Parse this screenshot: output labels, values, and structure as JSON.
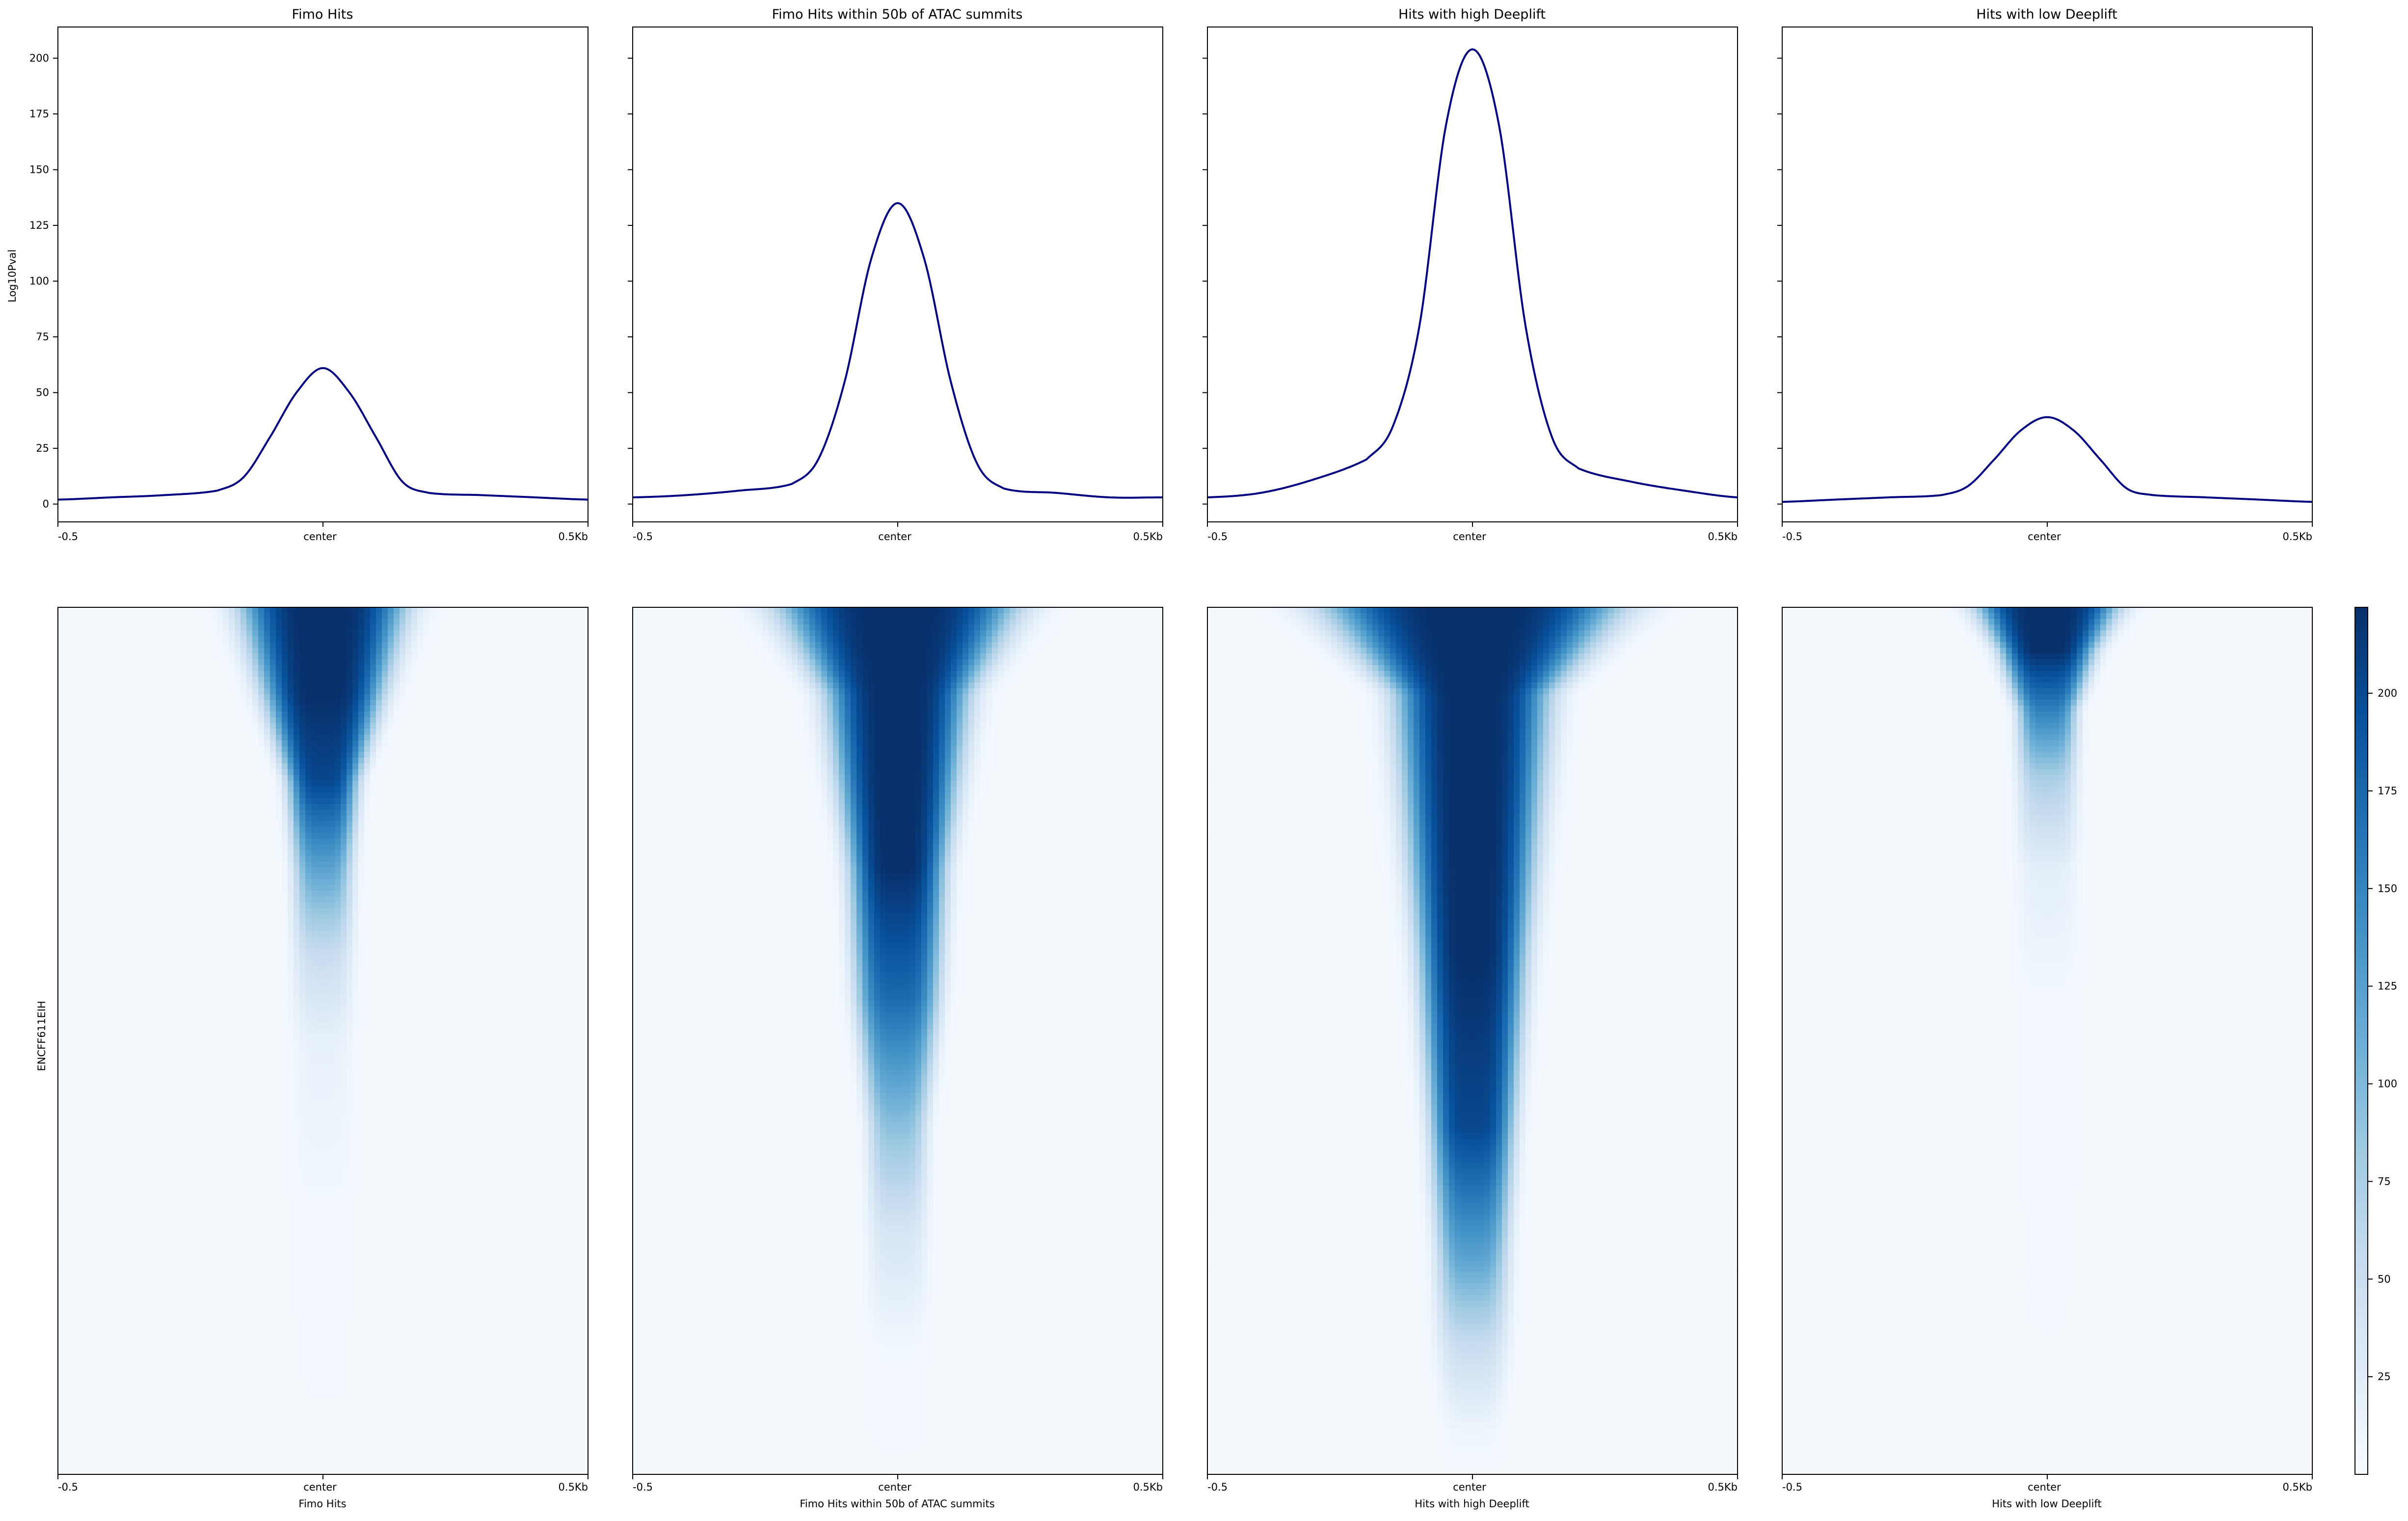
{
  "figure": {
    "profile_ylabel": "Log10Pval",
    "heatmap_ylabel": "ENCFF611EIH",
    "line_color": "#000080",
    "colormap": [
      "#f7fbff",
      "#deebf7",
      "#c6dbef",
      "#9ecae1",
      "#6baed6",
      "#4292c6",
      "#2171b5",
      "#08519c",
      "#08306b"
    ]
  },
  "chart_data": [
    {
      "type": "line",
      "title": "Fimo Hits",
      "x_ticks": [
        "-0.5",
        "center",
        "0.5Kb"
      ],
      "ylabel": "Log10Pval",
      "y_ticks": [
        "0",
        "25",
        "50",
        "75",
        "100",
        "125",
        "150",
        "175",
        "200"
      ],
      "ylim": [
        -8,
        214
      ],
      "x": [
        -0.5,
        -0.4,
        -0.3,
        -0.2,
        -0.15,
        -0.1,
        -0.05,
        0,
        0.05,
        0.1,
        0.15,
        0.2,
        0.3,
        0.4,
        0.5
      ],
      "values": [
        2,
        3,
        4,
        6,
        12,
        30,
        50,
        61,
        50,
        30,
        10,
        5,
        4,
        3,
        2
      ]
    },
    {
      "type": "line",
      "title": "Fimo Hits within 50b of ATAC summits",
      "x_ticks": [
        "-0.5",
        "center",
        "0.5Kb"
      ],
      "ylim": [
        -8,
        214
      ],
      "x": [
        -0.5,
        -0.4,
        -0.3,
        -0.2,
        -0.15,
        -0.1,
        -0.05,
        0,
        0.05,
        0.1,
        0.15,
        0.2,
        0.3,
        0.4,
        0.5
      ],
      "values": [
        3,
        4,
        6,
        9,
        20,
        55,
        110,
        135,
        110,
        55,
        18,
        7,
        5,
        3,
        3
      ]
    },
    {
      "type": "line",
      "title": "Hits with high Deeplift",
      "x_ticks": [
        "-0.5",
        "center",
        "0.5Kb"
      ],
      "ylim": [
        -8,
        214
      ],
      "x": [
        -0.5,
        -0.4,
        -0.3,
        -0.2,
        -0.15,
        -0.1,
        -0.05,
        0,
        0.05,
        0.1,
        0.15,
        0.2,
        0.3,
        0.4,
        0.5
      ],
      "values": [
        3,
        5,
        11,
        20,
        35,
        80,
        170,
        204,
        170,
        80,
        30,
        16,
        10,
        6,
        3
      ]
    },
    {
      "type": "line",
      "title": "Hits with low Deeplift",
      "x_ticks": [
        "-0.5",
        "center",
        "0.5Kb"
      ],
      "ylim": [
        -8,
        214
      ],
      "x": [
        -0.5,
        -0.4,
        -0.3,
        -0.2,
        -0.15,
        -0.1,
        -0.05,
        0,
        0.05,
        0.1,
        0.15,
        0.2,
        0.3,
        0.4,
        0.5
      ],
      "values": [
        1,
        2,
        3,
        4,
        8,
        20,
        33,
        39,
        33,
        20,
        7,
        4,
        3,
        2,
        1
      ]
    },
    {
      "type": "heatmap",
      "xlabel": "Fimo Hits",
      "x_ticks": [
        "-0.5",
        "center",
        "0.5Kb"
      ],
      "ylabel": "ENCFF611EIH",
      "bands": [
        {
          "row_fraction": 0.0,
          "center_value": 220,
          "half_width_kb": 0.14
        },
        {
          "row_fraction": 0.1,
          "center_value": 220,
          "half_width_kb": 0.1
        },
        {
          "row_fraction": 0.2,
          "center_value": 200,
          "half_width_kb": 0.06
        },
        {
          "row_fraction": 0.3,
          "center_value": 120,
          "half_width_kb": 0.05
        },
        {
          "row_fraction": 0.4,
          "center_value": 50,
          "half_width_kb": 0.05
        },
        {
          "row_fraction": 0.5,
          "center_value": 15,
          "half_width_kb": 0.05
        },
        {
          "row_fraction": 0.7,
          "center_value": 3,
          "half_width_kb": 0.05
        },
        {
          "row_fraction": 1.0,
          "center_value": 0,
          "half_width_kb": 0.05
        }
      ]
    },
    {
      "type": "heatmap",
      "xlabel": "Fimo Hits within 50b of ATAC summits",
      "x_ticks": [
        "-0.5",
        "center",
        "0.5Kb"
      ],
      "bands": [
        {
          "row_fraction": 0.0,
          "center_value": 220,
          "half_width_kb": 0.2
        },
        {
          "row_fraction": 0.1,
          "center_value": 220,
          "half_width_kb": 0.12
        },
        {
          "row_fraction": 0.3,
          "center_value": 220,
          "half_width_kb": 0.08
        },
        {
          "row_fraction": 0.45,
          "center_value": 170,
          "half_width_kb": 0.07
        },
        {
          "row_fraction": 0.6,
          "center_value": 90,
          "half_width_kb": 0.05
        },
        {
          "row_fraction": 0.72,
          "center_value": 35,
          "half_width_kb": 0.05
        },
        {
          "row_fraction": 0.85,
          "center_value": 5,
          "half_width_kb": 0.05
        },
        {
          "row_fraction": 1.0,
          "center_value": 0,
          "half_width_kb": 0.05
        }
      ]
    },
    {
      "type": "heatmap",
      "xlabel": "Hits with high Deeplift",
      "x_ticks": [
        "-0.5",
        "center",
        "0.5Kb"
      ],
      "bands": [
        {
          "row_fraction": 0.0,
          "center_value": 220,
          "half_width_kb": 0.25
        },
        {
          "row_fraction": 0.1,
          "center_value": 220,
          "half_width_kb": 0.13
        },
        {
          "row_fraction": 0.4,
          "center_value": 220,
          "half_width_kb": 0.09
        },
        {
          "row_fraction": 0.6,
          "center_value": 200,
          "half_width_kb": 0.07
        },
        {
          "row_fraction": 0.75,
          "center_value": 120,
          "half_width_kb": 0.06
        },
        {
          "row_fraction": 0.85,
          "center_value": 50,
          "half_width_kb": 0.06
        },
        {
          "row_fraction": 0.95,
          "center_value": 8,
          "half_width_kb": 0.05
        },
        {
          "row_fraction": 1.0,
          "center_value": 0,
          "half_width_kb": 0.05
        }
      ]
    },
    {
      "type": "heatmap",
      "xlabel": "Hits with low Deeplift",
      "x_ticks": [
        "-0.5",
        "center",
        "0.5Kb"
      ],
      "bands": [
        {
          "row_fraction": 0.0,
          "center_value": 220,
          "half_width_kb": 0.12
        },
        {
          "row_fraction": 0.05,
          "center_value": 220,
          "half_width_kb": 0.08
        },
        {
          "row_fraction": 0.12,
          "center_value": 150,
          "half_width_kb": 0.05
        },
        {
          "row_fraction": 0.2,
          "center_value": 70,
          "half_width_kb": 0.05
        },
        {
          "row_fraction": 0.3,
          "center_value": 20,
          "half_width_kb": 0.05
        },
        {
          "row_fraction": 0.45,
          "center_value": 3,
          "half_width_kb": 0.05
        },
        {
          "row_fraction": 1.0,
          "center_value": 0,
          "half_width_kb": 0.05
        }
      ]
    },
    {
      "type": "colorbar",
      "colormap": "Blues",
      "range": [
        0,
        222
      ],
      "ticks": [
        "25",
        "50",
        "75",
        "100",
        "125",
        "150",
        "175",
        "200"
      ]
    }
  ]
}
